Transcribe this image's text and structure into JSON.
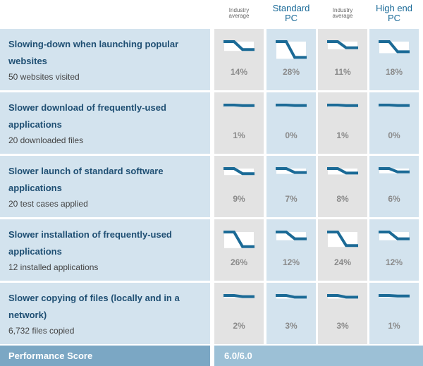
{
  "chart_data": {
    "type": "table",
    "columns": [
      {
        "label": "Industry average",
        "kind": "industry"
      },
      {
        "label": "Standard PC",
        "kind": "pc"
      },
      {
        "label": "Industry average",
        "kind": "industry"
      },
      {
        "label": "High end PC",
        "kind": "pc"
      }
    ],
    "rows": [
      {
        "title": "Slowing-down when launching popular websites",
        "subtitle": "50 websites visited",
        "values": [
          "14%",
          "28%",
          "11%",
          "18%"
        ],
        "numeric": [
          14,
          28,
          11,
          18
        ]
      },
      {
        "title": "Slower download of frequently-used applications",
        "subtitle": "20 downloaded files",
        "values": [
          "1%",
          "0%",
          "1%",
          "0%"
        ],
        "numeric": [
          1,
          0,
          1,
          0
        ]
      },
      {
        "title": "Slower launch of standard software applications",
        "subtitle": "20 test cases applied",
        "values": [
          "9%",
          "7%",
          "8%",
          "6%"
        ],
        "numeric": [
          9,
          7,
          8,
          6
        ]
      },
      {
        "title": "Slower installation of frequently-used applications",
        "subtitle": "12 installed applications",
        "values": [
          "26%",
          "12%",
          "24%",
          "12%"
        ],
        "numeric": [
          26,
          12,
          24,
          12
        ]
      },
      {
        "title": "Slower copying of files (locally and in a network)",
        "subtitle": "6,732 files copied",
        "values": [
          "2%",
          "3%",
          "3%",
          "1%"
        ],
        "numeric": [
          2,
          3,
          3,
          1
        ]
      }
    ],
    "footer": {
      "label": "Performance Score",
      "value": "6.0/6.0"
    },
    "colors": {
      "line": "#1b6a96",
      "industry_bg": "#e3e3e3",
      "pc_bg": "#d3e3ee",
      "footer": "#7ba7c4"
    }
  }
}
